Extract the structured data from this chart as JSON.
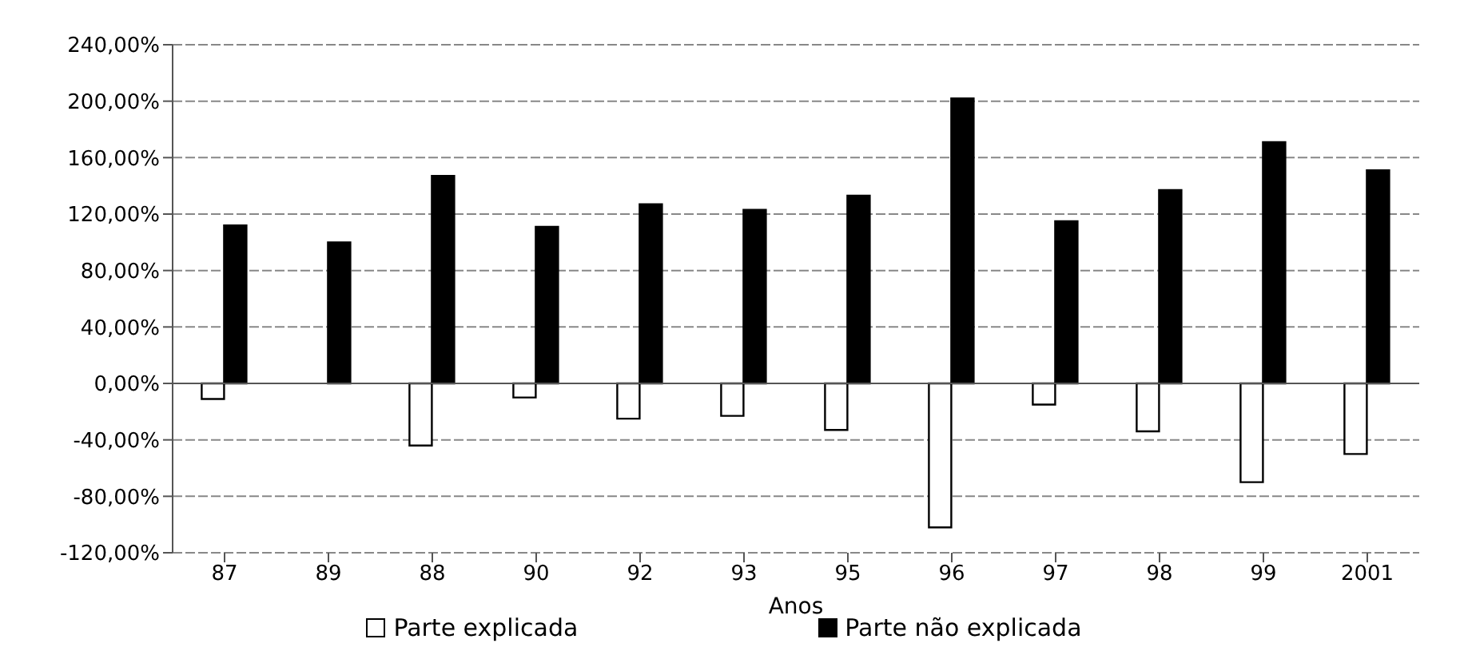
{
  "chart_data": {
    "type": "bar",
    "xlabel": "Anos",
    "categories": [
      "87",
      "89",
      "88",
      "90",
      "92",
      "93",
      "95",
      "96",
      "97",
      "98",
      "99",
      "2001"
    ],
    "series": [
      {
        "name": "Parte explicada",
        "color": "#ffffff",
        "values": [
          -11,
          0,
          -44,
          -10,
          -25,
          -23,
          -33,
          -102,
          -15,
          -34,
          -70,
          -50
        ]
      },
      {
        "name": "Parte não explicada",
        "color": "#000000",
        "values": [
          112,
          100,
          147,
          111,
          127,
          123,
          133,
          202,
          115,
          137,
          171,
          151
        ]
      }
    ],
    "ylim": [
      -120,
      240
    ],
    "yticks": [
      {
        "value": -120,
        "label": "-120,00%"
      },
      {
        "value": -80,
        "label": "-80,00%"
      },
      {
        "value": -40,
        "label": "-40,00%"
      },
      {
        "value": 0,
        "label": "0,00%"
      },
      {
        "value": 40,
        "label": "40,00%"
      },
      {
        "value": 80,
        "label": "80,00%"
      },
      {
        "value": 120,
        "label": "120,00%"
      },
      {
        "value": 160,
        "label": "160,00%"
      },
      {
        "value": 200,
        "label": "200,00%"
      },
      {
        "value": 240,
        "label": "240,00%"
      }
    ],
    "grid": "y",
    "legend": "bottom"
  }
}
